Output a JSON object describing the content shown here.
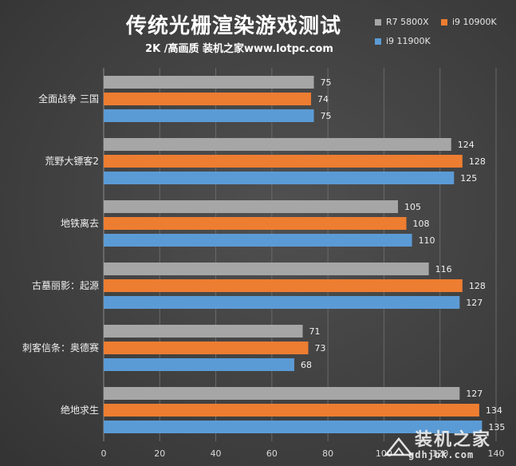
{
  "chart_data": {
    "type": "bar",
    "orientation": "horizontal",
    "title": "传统光栅渲染游戏测试",
    "subtitle": "2K /高画质 装机之家www.lotpc.com",
    "categories": [
      "全面战争 三国",
      "荒野大镖客2",
      "地铁离去",
      "古墓丽影：起源",
      "刺客信条：奥德赛",
      "绝地求生"
    ],
    "series": [
      {
        "name": "R7 5800X",
        "color": "#a6a6a6",
        "values": [
          75,
          124,
          105,
          116,
          71,
          127
        ]
      },
      {
        "name": "i9 10900K",
        "color": "#ed7d31",
        "values": [
          74,
          128,
          108,
          128,
          73,
          134
        ]
      },
      {
        "name": "i9 11900K",
        "color": "#5b9bd5",
        "values": [
          75,
          125,
          110,
          127,
          68,
          135
        ]
      }
    ],
    "xlim": [
      0,
      140
    ],
    "xticks": [
      0,
      20,
      40,
      60,
      80,
      100,
      120,
      140
    ],
    "grid": true,
    "legend_position": "top-right"
  },
  "watermark": {
    "text": "装机之家",
    "url": "gdhjbk.com"
  }
}
